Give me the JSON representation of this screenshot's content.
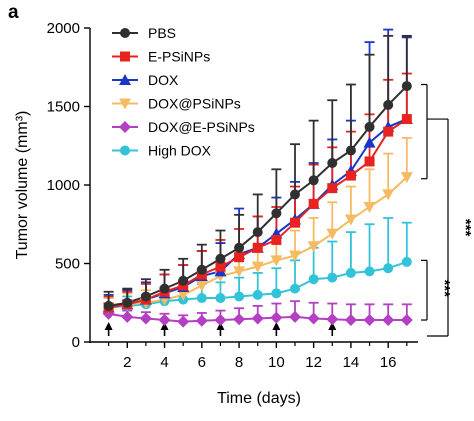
{
  "figure": {
    "panel_letter": "a"
  },
  "chart_data": {
    "type": "line",
    "xlabel": "Time (days)",
    "ylabel": "Tumor volume (mm³)",
    "xlim": [
      0,
      17.6
    ],
    "ylim": [
      0,
      2000
    ],
    "xticks": [
      2,
      4,
      6,
      8,
      10,
      12,
      14,
      16
    ],
    "yticks": [
      0,
      500,
      1000,
      1500,
      2000
    ],
    "legend_position": "top-left",
    "grid": false,
    "x": [
      1,
      2,
      3,
      4,
      5,
      6,
      7,
      8,
      9,
      10,
      11,
      12,
      13,
      14,
      15,
      16,
      17
    ],
    "treatment_days": [
      1,
      4,
      7,
      10,
      13
    ],
    "series": [
      {
        "name": "PBS",
        "color": "#303030",
        "marker": "circle",
        "values": [
          230,
          250,
          290,
          340,
          390,
          460,
          530,
          600,
          700,
          820,
          940,
          1030,
          1140,
          1220,
          1370,
          1510,
          1630
        ],
        "errors": [
          90,
          90,
          110,
          120,
          140,
          160,
          180,
          210,
          240,
          280,
          320,
          380,
          400,
          420,
          460,
          440,
          320
        ]
      },
      {
        "name": "E-PSiNPs",
        "color": "#e8231f",
        "marker": "square",
        "values": [
          220,
          240,
          270,
          320,
          360,
          430,
          480,
          540,
          600,
          650,
          760,
          880,
          980,
          1060,
          1150,
          1340,
          1420
        ],
        "errors": [
          70,
          80,
          100,
          110,
          130,
          150,
          170,
          180,
          200,
          210,
          230,
          250,
          260,
          280,
          300,
          330,
          290
        ]
      },
      {
        "name": "DOX",
        "color": "#1a35c8",
        "marker": "triangle-up",
        "values": [
          220,
          240,
          270,
          310,
          350,
          420,
          450,
          560,
          600,
          690,
          780,
          880,
          1000,
          1090,
          1270,
          1370,
          1420
        ],
        "errors": [
          80,
          90,
          110,
          120,
          140,
          160,
          180,
          290,
          200,
          230,
          240,
          260,
          290,
          320,
          640,
          620,
          520
        ]
      },
      {
        "name": "DOX@PSiNPs",
        "color": "#f4bb62",
        "marker": "triangle-down",
        "values": [
          220,
          240,
          250,
          270,
          300,
          360,
          420,
          450,
          480,
          520,
          550,
          610,
          690,
          780,
          860,
          940,
          1050
        ],
        "errors": [
          60,
          70,
          80,
          80,
          90,
          100,
          110,
          120,
          130,
          140,
          160,
          180,
          200,
          210,
          240,
          260,
          250
        ]
      },
      {
        "name": "DOX@E-PSiNPs",
        "color": "#b33fc2",
        "marker": "diamond",
        "values": [
          180,
          160,
          150,
          140,
          130,
          135,
          140,
          145,
          150,
          155,
          160,
          150,
          145,
          140,
          140,
          140,
          140
        ],
        "errors": [
          40,
          40,
          40,
          40,
          40,
          50,
          60,
          70,
          80,
          90,
          100,
          100,
          100,
          100,
          100,
          100,
          100
        ]
      },
      {
        "name": "High DOX",
        "color": "#33c3d8",
        "marker": "circle",
        "values": [
          220,
          230,
          240,
          260,
          270,
          280,
          280,
          290,
          300,
          310,
          340,
          400,
          410,
          440,
          450,
          470,
          510
        ],
        "errors": [
          60,
          60,
          60,
          70,
          80,
          90,
          100,
          120,
          140,
          160,
          180,
          200,
          230,
          260,
          300,
          320,
          250
        ]
      }
    ],
    "significance": [
      {
        "label": "***",
        "group": "upper"
      },
      {
        "label": "***",
        "group": "lower"
      }
    ]
  }
}
